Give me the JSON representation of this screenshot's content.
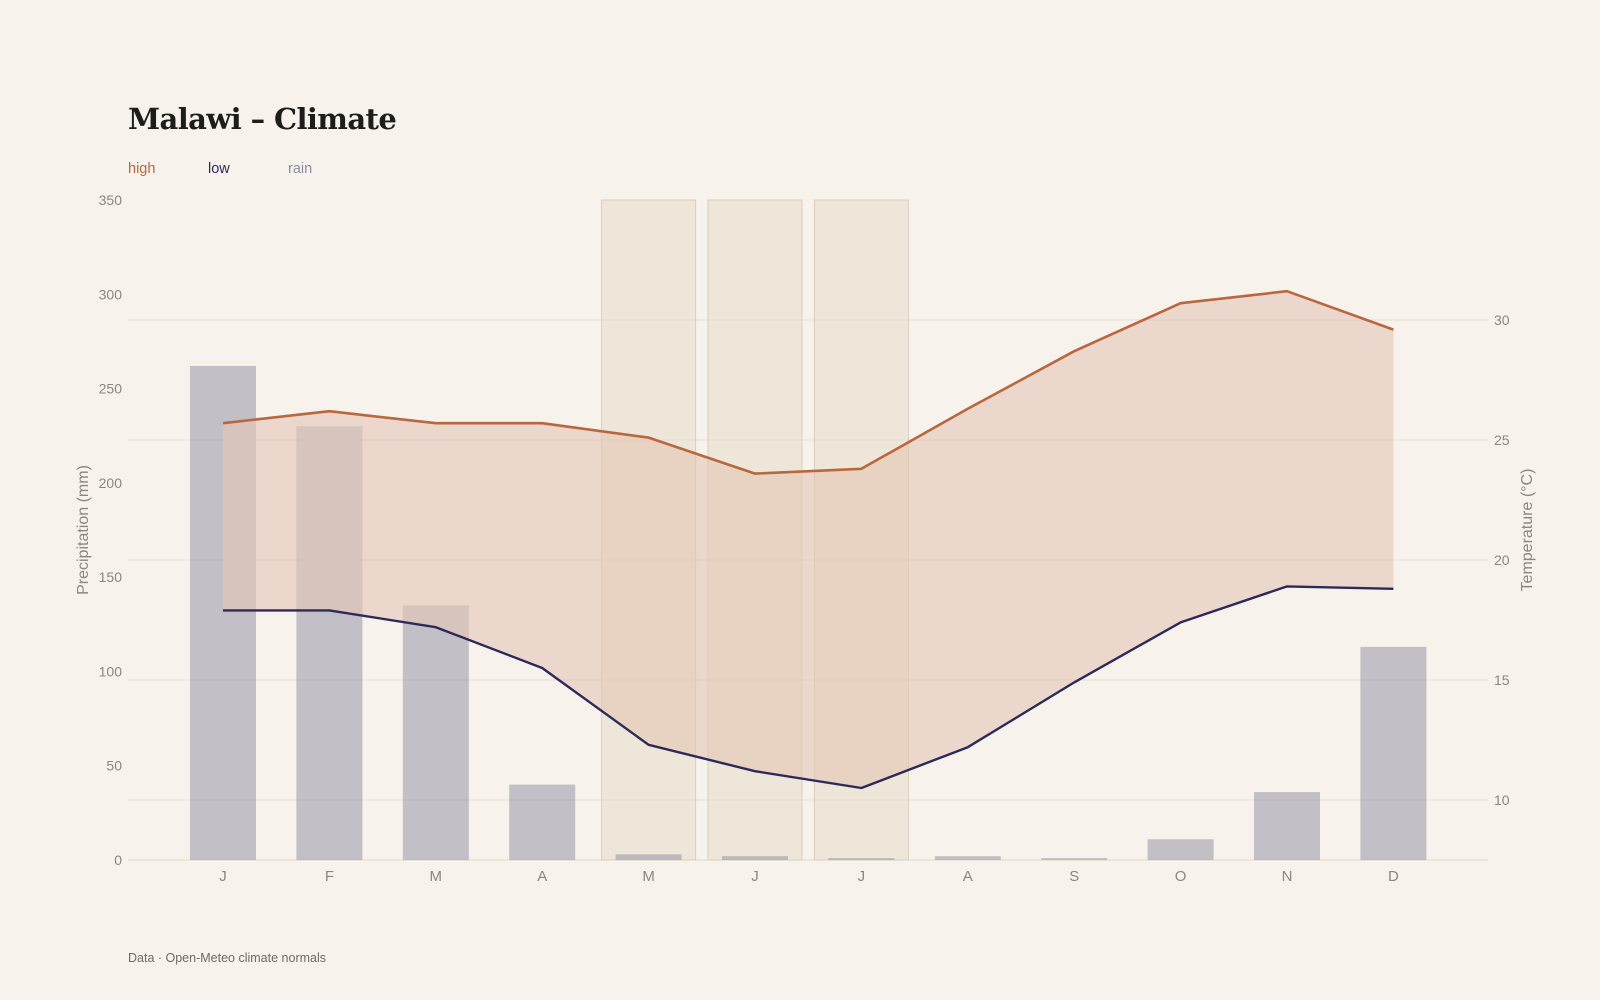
{
  "title": "Malawi – Climate",
  "legend": {
    "high": "high",
    "low": "low",
    "rain": "rain"
  },
  "source": "Data · Open-Meteo climate normals",
  "colors": {
    "background": "#f7f2ec",
    "high": "#b9673f",
    "low": "#2d2a5a",
    "rain": "#8e8ba0",
    "band": "#e4c7b6",
    "dry_season": "#e8dcc9"
  },
  "chart_data": {
    "type": "bar+line",
    "categories": [
      "J",
      "F",
      "M",
      "A",
      "M",
      "J",
      "J",
      "A",
      "S",
      "O",
      "N",
      "D"
    ],
    "precipitation": [
      262,
      230,
      135,
      40,
      3,
      2,
      1,
      2,
      1,
      11,
      36,
      113
    ],
    "high": [
      25.7,
      26.2,
      25.7,
      25.7,
      25.1,
      23.6,
      23.8,
      26.3,
      28.7,
      30.7,
      31.2,
      29.6
    ],
    "low": [
      17.9,
      17.9,
      17.2,
      15.5,
      12.3,
      11.2,
      10.5,
      12.2,
      14.9,
      17.4,
      18.9,
      18.8
    ],
    "dry_season_months": [
      "M",
      "J",
      "J"
    ],
    "y_left": {
      "label": "Precipitation (mm)",
      "range": [
        0,
        350
      ],
      "ticks": [
        0,
        50,
        100,
        150,
        200,
        250,
        300,
        350
      ]
    },
    "y_right": {
      "label": "Temperature (°C)",
      "range": [
        7.5,
        35
      ],
      "ticks": [
        10,
        15,
        20,
        25,
        30
      ]
    },
    "grid": true,
    "legend_position": "top-left"
  }
}
